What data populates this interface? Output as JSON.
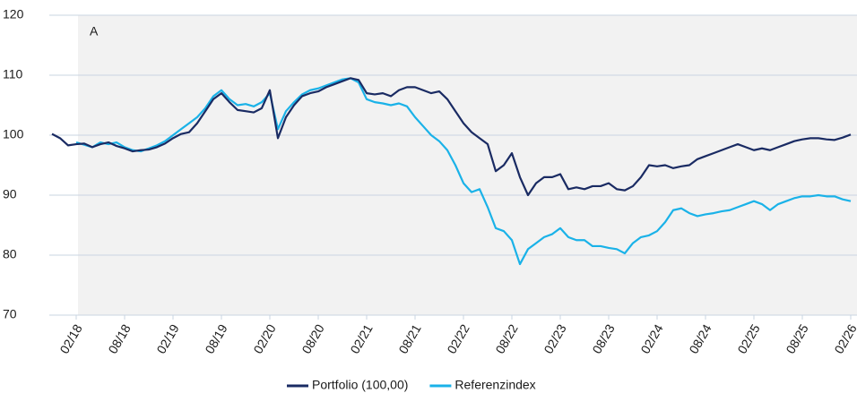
{
  "chart_data": {
    "type": "line",
    "annotation": "A",
    "categories": [
      null,
      null,
      null,
      "02/18",
      null,
      null,
      null,
      null,
      null,
      "08/18",
      null,
      null,
      null,
      null,
      null,
      "02/19",
      null,
      null,
      null,
      null,
      null,
      "08/19",
      null,
      null,
      null,
      null,
      null,
      "02/20",
      null,
      null,
      null,
      null,
      null,
      "08/20",
      null,
      null,
      null,
      null,
      null,
      "02/21",
      null,
      null,
      null,
      null,
      null,
      "08/21",
      null,
      null,
      null,
      null,
      null,
      "02/22",
      null,
      null,
      null,
      null,
      null,
      "08/22",
      null,
      null,
      null,
      null,
      null,
      "02/23",
      null,
      null,
      null,
      null,
      null,
      "08/23",
      null,
      null,
      null,
      null,
      null,
      "02/24",
      null,
      null,
      null,
      null,
      null,
      "08/24",
      null,
      null,
      null,
      null,
      null,
      "02/25",
      null,
      null,
      null,
      null,
      null,
      "08/25",
      null,
      null,
      null,
      null,
      null,
      "02/26"
    ],
    "series": [
      {
        "name": "Portfolio (100,00)",
        "color": "#1a2b63",
        "values": [
          100.2,
          99.5,
          98.3,
          98.5,
          98.6,
          98.0,
          98.5,
          98.8,
          98.2,
          97.8,
          97.3,
          97.5,
          97.6,
          98.0,
          98.6,
          99.5,
          100.2,
          100.5,
          102,
          104,
          106,
          107,
          105.5,
          104.2,
          104.0,
          103.8,
          104.5,
          107.5,
          99.5,
          103,
          105,
          106.5,
          107,
          107.3,
          108,
          108.5,
          109,
          109.5,
          109.2,
          107,
          106.8,
          107,
          106.5,
          107.5,
          108,
          108,
          107.5,
          107,
          107.3,
          106,
          104,
          102,
          100.5,
          99.5,
          98.5,
          94,
          95,
          97,
          93,
          90,
          92,
          93,
          93,
          93.5,
          91,
          91.3,
          91,
          91.5,
          91.5,
          92,
          91,
          90.8,
          91.5,
          93,
          95,
          94.8,
          95,
          94.5,
          94.8,
          95,
          96,
          96.5,
          97,
          97.5,
          98,
          98.5,
          98,
          97.5,
          97.8,
          97.5,
          98,
          98.5,
          99,
          99.3,
          99.5,
          99.5,
          99.3,
          99.2,
          99.6,
          100.1
        ]
      },
      {
        "name": "Referenzindex",
        "color": "#1ab2e8",
        "values": [
          null,
          null,
          null,
          98.8,
          98.4,
          98.0,
          98.8,
          98.5,
          98.8,
          98.0,
          97.5,
          97.3,
          97.8,
          98.3,
          99,
          100,
          101,
          102,
          103,
          104.5,
          106.5,
          107.5,
          106,
          105,
          105.2,
          104.8,
          105.5,
          107,
          101,
          104,
          105.5,
          106.8,
          107.5,
          107.8,
          108.3,
          108.8,
          109.3,
          109.5,
          108.8,
          106,
          105.5,
          105.3,
          105,
          105.3,
          104.8,
          103,
          101.5,
          100,
          99,
          97.5,
          95,
          92,
          90.5,
          91,
          88,
          84.5,
          84,
          82.5,
          78.5,
          81,
          82,
          83,
          83.5,
          84.5,
          83,
          82.5,
          82.5,
          81.5,
          81.5,
          81.2,
          81,
          80.3,
          82,
          83,
          83.3,
          84,
          85.5,
          87.5,
          87.8,
          87,
          86.5,
          86.8,
          87,
          87.3,
          87.5,
          88,
          88.5,
          89,
          88.5,
          87.5,
          88.5,
          89,
          89.5,
          89.8,
          89.8,
          90,
          89.8,
          89.8,
          89.3,
          89
        ]
      }
    ],
    "ylim": [
      70,
      120
    ],
    "yticks": [
      70,
      80,
      90,
      100,
      110,
      120
    ],
    "grid": true,
    "legend": "bottom"
  }
}
